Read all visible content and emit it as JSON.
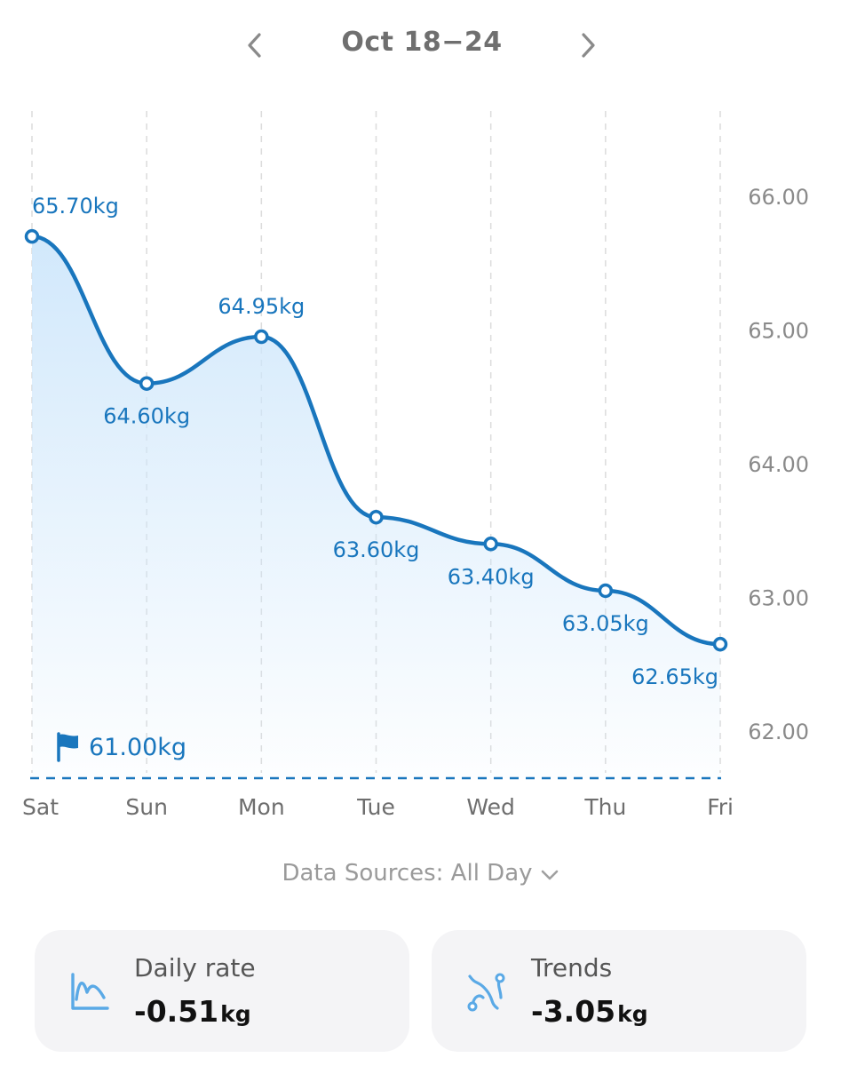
{
  "header": {
    "range_title": "Oct 18−24",
    "prev_icon": "chevron-left-icon",
    "next_icon": "chevron-right-icon"
  },
  "chart_data": {
    "type": "line",
    "smooth": true,
    "area_fill": true,
    "categories": [
      "Sat",
      "Sun",
      "Mon",
      "Tue",
      "Wed",
      "Thu",
      "Fri"
    ],
    "series": [
      {
        "values": [
          65.7,
          64.6,
          64.95,
          63.6,
          63.4,
          63.05,
          62.65
        ],
        "labels": [
          "65.70kg",
          "64.60kg",
          "64.95kg",
          "63.60kg",
          "63.40kg",
          "63.05kg",
          "62.65kg"
        ]
      }
    ],
    "yticks": [
      "66.00",
      "65.00",
      "64.00",
      "63.00",
      "62.00"
    ],
    "ytick_values": [
      66,
      65,
      64,
      63,
      62
    ],
    "y_axis_side": "right",
    "goal": {
      "value": 61.0,
      "label": "61.00kg",
      "icon": "flag-icon"
    },
    "colors": {
      "line": "#1976bd",
      "fill": "#d9ecfb",
      "grid": "#dcdcdc"
    },
    "grid": "vertical-dashed"
  },
  "footer": {
    "data_sources_label": "Data Sources: All Day",
    "data_sources_icon": "chevron-down-icon"
  },
  "stats": [
    {
      "label": "Daily rate",
      "value": "-0.51",
      "unit": "kg",
      "icon": "rate-chart-icon"
    },
    {
      "label": "Trends",
      "value": "-3.05",
      "unit": "kg",
      "icon": "trend-icon"
    }
  ]
}
